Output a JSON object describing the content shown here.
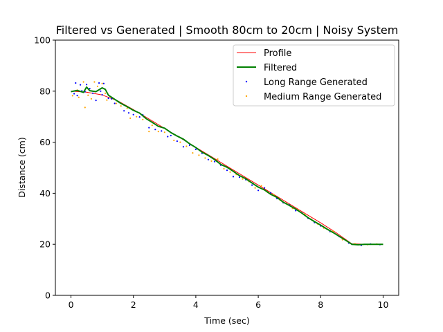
{
  "chart_data": {
    "type": "line",
    "title": "Filtered vs Generated | Smooth 80cm to 20cm | Noisy System",
    "xlabel": "Time (sec)",
    "ylabel": "Distance (cm)",
    "xlim": [
      -0.5,
      10.5
    ],
    "ylim": [
      0,
      100
    ],
    "xticks": [
      0,
      2,
      4,
      6,
      8,
      10
    ],
    "yticks": [
      0,
      20,
      40,
      60,
      80,
      100
    ],
    "grid": false,
    "legend_position": "top-right",
    "series": [
      {
        "name": "Profile",
        "kind": "line",
        "color": "#ff0000",
        "x": [
          0,
          0.5,
          1.0,
          1.5,
          2.0,
          2.5,
          3.0,
          3.5,
          4.0,
          4.5,
          5.0,
          5.5,
          6.0,
          6.5,
          7.0,
          7.5,
          8.0,
          8.5,
          9.0,
          9.5,
          10.0
        ],
        "values": [
          80,
          79.6,
          78.5,
          76.2,
          72.8,
          69.1,
          65.4,
          61.7,
          58.0,
          54.3,
          50.6,
          46.9,
          43.2,
          39.5,
          35.8,
          32.1,
          28.4,
          24.5,
          20.2,
          20.0,
          20.0
        ]
      },
      {
        "name": "Filtered",
        "kind": "line",
        "color": "#008000",
        "x": [
          0,
          0.2,
          0.4,
          0.5,
          0.6,
          0.8,
          1.0,
          1.1,
          1.2,
          1.4,
          1.6,
          1.8,
          2.0,
          2.2,
          2.4,
          2.6,
          2.8,
          3.0,
          3.2,
          3.4,
          3.6,
          3.8,
          4.0,
          4.2,
          4.4,
          4.6,
          4.8,
          5.0,
          5.2,
          5.4,
          5.6,
          5.8,
          6.0,
          6.2,
          6.4,
          6.6,
          6.8,
          7.0,
          7.2,
          7.4,
          7.6,
          7.8,
          8.0,
          8.2,
          8.4,
          8.6,
          8.8,
          9.0,
          9.2,
          9.4,
          9.6,
          9.8,
          10.0
        ],
        "values": [
          79.8,
          80.3,
          79.5,
          81.6,
          80.2,
          79.8,
          81.3,
          80.7,
          78.4,
          76.8,
          75.2,
          73.9,
          72.5,
          71.4,
          69.3,
          67.8,
          66.2,
          65.5,
          63.8,
          62.4,
          61.2,
          59.4,
          57.9,
          56.1,
          54.8,
          53.2,
          51.3,
          50.2,
          48.6,
          46.9,
          45.7,
          44.0,
          42.4,
          41.3,
          39.6,
          38.4,
          36.5,
          35.2,
          33.8,
          32.2,
          30.4,
          28.9,
          27.5,
          26.0,
          24.6,
          23.1,
          21.6,
          20.0,
          19.8,
          20.0,
          20.0,
          20.0,
          20.0
        ]
      },
      {
        "name": "Long Range Generated",
        "kind": "scatter",
        "color": "#0000ff",
        "x": [
          0.1,
          0.15,
          0.2,
          0.3,
          0.35,
          0.45,
          0.5,
          0.6,
          0.7,
          0.8,
          0.9,
          0.95,
          1.0,
          1.05,
          1.2,
          1.3,
          1.4,
          1.55,
          1.7,
          1.85,
          2.0,
          2.2,
          2.3,
          2.5,
          2.7,
          2.9,
          3.1,
          3.2,
          3.4,
          3.6,
          3.8,
          4.0,
          4.2,
          4.4,
          4.6,
          4.8,
          5.0,
          5.2,
          5.4,
          5.6,
          5.8,
          6.0,
          6.2,
          6.4,
          6.6,
          6.8,
          7.0,
          7.2,
          7.4,
          7.6,
          7.8,
          8.0,
          8.3,
          8.6,
          8.9,
          9.0,
          9.3,
          9.6,
          9.9
        ],
        "values": [
          79.0,
          83.2,
          78.3,
          82.5,
          80.1,
          79.8,
          82.6,
          81.0,
          79.2,
          76.4,
          83.2,
          80.0,
          78.6,
          83.0,
          77.2,
          77.0,
          75.2,
          75.6,
          72.3,
          71.5,
          70.8,
          69.9,
          70.7,
          65.7,
          65.0,
          64.4,
          62.2,
          62.6,
          60.4,
          58.2,
          58.8,
          57.2,
          55.7,
          53.2,
          52.4,
          51.0,
          49.0,
          46.5,
          46.3,
          45.3,
          43.2,
          41.1,
          42.1,
          40.1,
          37.9,
          36.3,
          35.4,
          33.2,
          32.3,
          30.2,
          28.5,
          27.2,
          25.0,
          23.0,
          20.5,
          20.0,
          19.6,
          20.1,
          19.9
        ]
      },
      {
        "name": "Medium Range Generated",
        "kind": "scatter",
        "color": "#ffa500",
        "x": [
          0.05,
          0.2,
          0.25,
          0.4,
          0.45,
          0.55,
          0.65,
          0.75,
          0.85,
          1.0,
          1.1,
          1.15,
          1.3,
          1.45,
          1.6,
          1.8,
          1.9,
          2.1,
          2.3,
          2.5,
          2.6,
          2.8,
          3.0,
          3.3,
          3.5,
          3.7,
          3.9,
          4.1,
          4.3,
          4.5,
          4.7,
          4.9,
          5.1,
          5.3,
          5.5,
          5.7,
          5.9,
          6.1,
          6.3,
          6.5,
          6.7,
          6.9,
          7.1,
          7.3,
          7.5,
          7.7,
          7.9,
          8.1,
          8.4,
          8.7,
          9.1,
          9.5,
          9.8
        ],
        "values": [
          78.2,
          80.4,
          77.6,
          83.6,
          73.6,
          78.4,
          77.0,
          83.6,
          81.9,
          83.0,
          79.2,
          76.5,
          77.6,
          75.2,
          74.2,
          73.3,
          69.4,
          70.0,
          68.9,
          64.2,
          66.6,
          64.2,
          63.9,
          60.7,
          60.0,
          58.4,
          55.8,
          54.9,
          53.8,
          52.6,
          53.4,
          49.6,
          48.3,
          47.4,
          45.6,
          44.6,
          42.1,
          42.9,
          40.4,
          39.4,
          37.3,
          36.0,
          34.1,
          33.4,
          31.8,
          29.8,
          28.0,
          26.4,
          25.2,
          21.8,
          20.2,
          19.9,
          20.1
        ]
      }
    ]
  }
}
